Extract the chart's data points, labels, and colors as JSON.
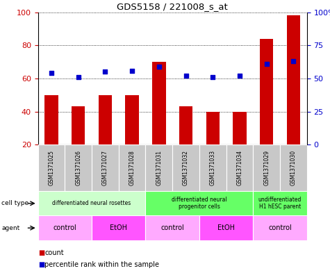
{
  "title": "GDS5158 / 221008_s_at",
  "samples": [
    "GSM1371025",
    "GSM1371026",
    "GSM1371027",
    "GSM1371028",
    "GSM1371031",
    "GSM1371032",
    "GSM1371033",
    "GSM1371034",
    "GSM1371029",
    "GSM1371030"
  ],
  "counts": [
    50,
    43,
    50,
    50,
    70,
    43,
    40,
    40,
    84,
    98
  ],
  "percentiles": [
    54,
    51,
    55,
    56,
    59,
    52,
    51,
    52,
    61,
    63
  ],
  "ylim_left": [
    20,
    100
  ],
  "ylim_right": [
    0,
    100
  ],
  "yticks_left": [
    20,
    40,
    60,
    80,
    100
  ],
  "yticks_right": [
    0,
    25,
    50,
    75,
    100
  ],
  "ytick_labels_right": [
    "0",
    "25",
    "50",
    "75",
    "100%"
  ],
  "bar_color": "#cc0000",
  "dot_color": "#0000cc",
  "cell_type_groups": [
    {
      "label": "differentiated neural rosettes",
      "start": 0,
      "end": 3,
      "color": "#ccffcc"
    },
    {
      "label": "differentiated neural\nprogenitor cells",
      "start": 4,
      "end": 7,
      "color": "#66ff66"
    },
    {
      "label": "undifferentiated\nH1 hESC parent",
      "start": 8,
      "end": 9,
      "color": "#66ff66"
    }
  ],
  "agent_groups": [
    {
      "label": "control",
      "start": 0,
      "end": 1,
      "color": "#ffaaff"
    },
    {
      "label": "EtOH",
      "start": 2,
      "end": 3,
      "color": "#ff55ff"
    },
    {
      "label": "control",
      "start": 4,
      "end": 5,
      "color": "#ffaaff"
    },
    {
      "label": "EtOH",
      "start": 6,
      "end": 7,
      "color": "#ff55ff"
    },
    {
      "label": "control",
      "start": 8,
      "end": 9,
      "color": "#ffaaff"
    }
  ],
  "bar_width": 0.5,
  "sample_row_color": "#c8c8c8",
  "legend_count_color": "#cc0000",
  "legend_pct_color": "#0000cc",
  "axis_color_left": "#cc0000",
  "axis_color_right": "#0000cc"
}
